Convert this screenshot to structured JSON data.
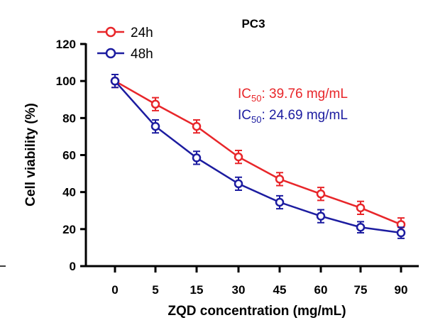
{
  "chart_data": {
    "type": "line",
    "title": "PC3",
    "xlabel": "ZQD concentration (mg/mL)",
    "ylabel": "Cell viability (%)",
    "categories": [
      "0",
      "5",
      "15",
      "30",
      "45",
      "60",
      "75",
      "90"
    ],
    "ylim": [
      0,
      120
    ],
    "yticks": [
      "0",
      "20",
      "40",
      "60",
      "80",
      "100",
      "120"
    ],
    "grid": false,
    "legend_position": "top-left",
    "series": [
      {
        "name": "24h",
        "color": "#e8262a",
        "values": [
          100,
          87.5,
          75.5,
          59,
          47,
          39,
          31.5,
          22.5
        ],
        "error": [
          3.5,
          3.5,
          3.5,
          3.5,
          3.5,
          3.5,
          3.5,
          3.5
        ]
      },
      {
        "name": "48h",
        "color": "#1c1ca0",
        "values": [
          100,
          75.5,
          58.5,
          44.5,
          34.5,
          27,
          21,
          18
        ],
        "error": [
          3.5,
          3.5,
          3.5,
          3.5,
          3.5,
          3.5,
          3,
          3
        ]
      }
    ],
    "annotations": [
      {
        "prefix": "IC",
        "sub": "50",
        "text": ": 39.76 mg/mL",
        "color": "#e8262a"
      },
      {
        "prefix": "IC",
        "sub": "50",
        "text": ": 24.69 mg/mL",
        "color": "#1c1ca0"
      }
    ]
  }
}
